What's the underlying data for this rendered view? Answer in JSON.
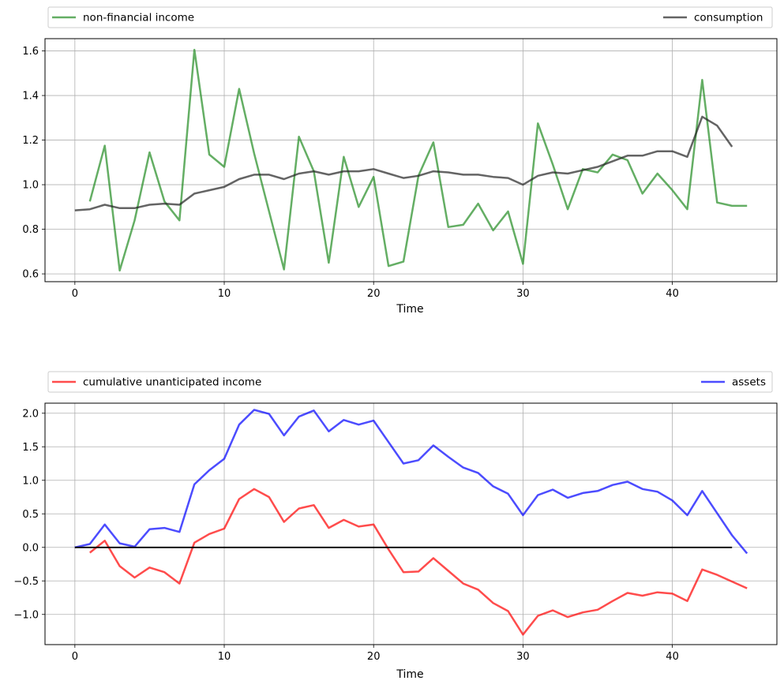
{
  "chart_data": [
    {
      "type": "line",
      "xlabel": "Time",
      "ylabel": "",
      "xlim": [
        -2,
        47
      ],
      "ylim": [
        0.565,
        1.655
      ],
      "xticks": [
        0,
        10,
        20,
        30,
        40
      ],
      "yticks": [
        0.6,
        0.8,
        1.0,
        1.2,
        1.4,
        1.6
      ],
      "ytick_labels": [
        "0.6",
        "0.8",
        "1.0",
        "1.2",
        "1.4",
        "1.6"
      ],
      "grid": true,
      "legend_placement": "above-plot",
      "series": [
        {
          "name": "non-financial income",
          "color": "#228b22",
          "x": [
            1,
            2,
            3,
            4,
            5,
            6,
            7,
            8,
            9,
            10,
            11,
            12,
            13,
            14,
            15,
            16,
            17,
            18,
            19,
            20,
            21,
            22,
            23,
            24,
            25,
            26,
            27,
            28,
            29,
            30,
            31,
            32,
            33,
            34,
            35,
            36,
            37,
            38,
            39,
            40,
            41,
            42,
            43,
            44,
            45
          ],
          "values": [
            0.925,
            1.175,
            0.615,
            0.84,
            1.145,
            0.925,
            0.84,
            1.605,
            1.135,
            1.08,
            1.43,
            1.14,
            0.88,
            0.62,
            1.215,
            1.06,
            0.65,
            1.125,
            0.9,
            1.035,
            0.635,
            0.655,
            1.04,
            1.19,
            0.81,
            0.82,
            0.915,
            0.795,
            0.88,
            0.645,
            1.275,
            1.09,
            0.89,
            1.07,
            1.055,
            1.135,
            1.11,
            0.96,
            1.05,
            0.975,
            0.89,
            1.47,
            0.92,
            0.905,
            0.905
          ]
        },
        {
          "name": "consumption",
          "color": "#222222",
          "x": [
            0,
            1,
            2,
            3,
            4,
            5,
            6,
            7,
            8,
            9,
            10,
            11,
            12,
            13,
            14,
            15,
            16,
            17,
            18,
            19,
            20,
            21,
            22,
            23,
            24,
            25,
            26,
            27,
            28,
            29,
            30,
            31,
            32,
            33,
            34,
            35,
            36,
            37,
            38,
            39,
            40,
            41,
            42,
            43,
            44
          ],
          "values": [
            0.885,
            0.89,
            0.91,
            0.895,
            0.895,
            0.91,
            0.915,
            0.91,
            0.96,
            0.975,
            0.99,
            1.025,
            1.045,
            1.045,
            1.025,
            1.05,
            1.06,
            1.045,
            1.06,
            1.06,
            1.07,
            1.05,
            1.03,
            1.04,
            1.06,
            1.055,
            1.045,
            1.045,
            1.035,
            1.03,
            1.0,
            1.04,
            1.055,
            1.05,
            1.065,
            1.08,
            1.105,
            1.13,
            1.13,
            1.15,
            1.15,
            1.125,
            1.305,
            1.265,
            1.17
          ]
        }
      ]
    },
    {
      "type": "line",
      "xlabel": "Time",
      "ylabel": "",
      "xlim": [
        -2,
        47
      ],
      "ylim": [
        -1.45,
        2.15
      ],
      "xticks": [
        0,
        10,
        20,
        30,
        40
      ],
      "yticks": [
        -1.0,
        -0.5,
        0.0,
        0.5,
        1.0,
        1.5,
        2.0
      ],
      "ytick_labels": [
        "−1.0",
        "−0.5",
        "0.0",
        "0.5",
        "1.0",
        "1.5",
        "2.0"
      ],
      "grid": true,
      "legend_placement": "above-plot",
      "series": [
        {
          "name": "cumulative unanticipated income",
          "color": "#ff0000",
          "x": [
            1,
            2,
            3,
            4,
            5,
            6,
            7,
            8,
            9,
            10,
            11,
            12,
            13,
            14,
            15,
            16,
            17,
            18,
            19,
            20,
            21,
            22,
            23,
            24,
            25,
            26,
            27,
            28,
            29,
            30,
            31,
            32,
            33,
            34,
            35,
            36,
            37,
            38,
            39,
            40,
            41,
            42,
            43,
            44,
            45
          ],
          "values": [
            -0.08,
            0.1,
            -0.28,
            -0.45,
            -0.3,
            -0.37,
            -0.54,
            0.07,
            0.2,
            0.28,
            0.72,
            0.87,
            0.75,
            0.38,
            0.58,
            0.63,
            0.29,
            0.41,
            0.31,
            0.34,
            -0.03,
            -0.37,
            -0.36,
            -0.16,
            -0.35,
            -0.54,
            -0.63,
            -0.83,
            -0.95,
            -1.3,
            -1.02,
            -0.94,
            -1.04,
            -0.97,
            -0.93,
            -0.8,
            -0.68,
            -0.72,
            -0.67,
            -0.69,
            -0.8,
            -0.33,
            -0.41,
            -0.51,
            -0.61
          ]
        },
        {
          "name": "assets",
          "color": "#0000ff",
          "x": [
            0,
            1,
            2,
            3,
            4,
            5,
            6,
            7,
            8,
            9,
            10,
            11,
            12,
            13,
            14,
            15,
            16,
            17,
            18,
            19,
            20,
            21,
            22,
            23,
            24,
            25,
            26,
            27,
            28,
            29,
            30,
            31,
            32,
            33,
            34,
            35,
            36,
            37,
            38,
            39,
            40,
            41,
            42,
            43,
            44,
            45
          ],
          "values": [
            0.0,
            0.05,
            0.34,
            0.06,
            0.01,
            0.27,
            0.29,
            0.23,
            0.94,
            1.15,
            1.32,
            1.83,
            2.05,
            1.99,
            1.67,
            1.95,
            2.04,
            1.73,
            1.9,
            1.83,
            1.89,
            1.57,
            1.25,
            1.3,
            1.52,
            1.35,
            1.19,
            1.11,
            0.91,
            0.8,
            0.48,
            0.78,
            0.86,
            0.74,
            0.81,
            0.84,
            0.93,
            0.98,
            0.87,
            0.83,
            0.7,
            0.48,
            0.84,
            0.51,
            0.18,
            -0.09
          ]
        },
        {
          "name": "",
          "color": "#000000",
          "x": [
            0,
            44
          ],
          "values": [
            0.0,
            0.0
          ]
        }
      ]
    }
  ]
}
